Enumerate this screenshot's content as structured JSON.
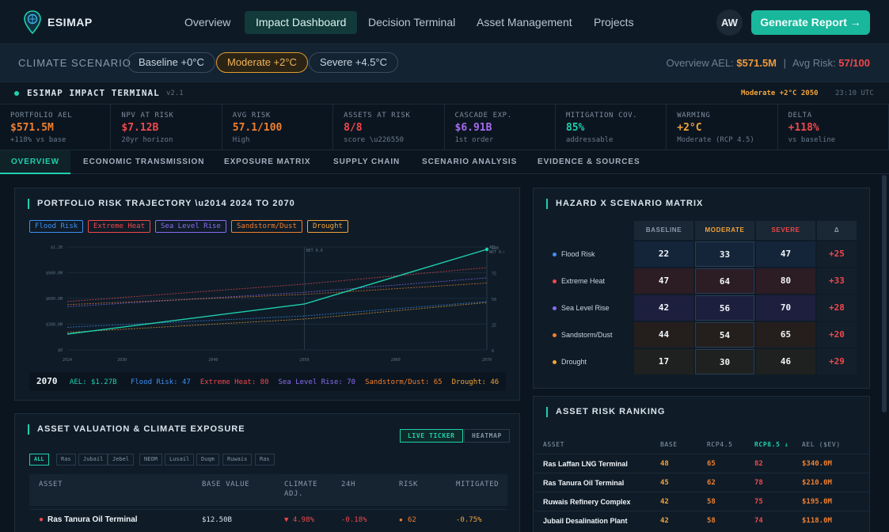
{
  "app": {
    "name": "ESIMAP"
  },
  "nav": {
    "items": [
      {
        "label": "Overview",
        "active": false
      },
      {
        "label": "Impact Dashboard",
        "active": true
      },
      {
        "label": "Decision Terminal",
        "active": false
      },
      {
        "label": "Asset Management",
        "active": false
      },
      {
        "label": "Projects",
        "active": false
      }
    ],
    "avatar": "AW",
    "generate_button": "Generate Report →"
  },
  "scenario_bar": {
    "label": "CLIMATE SCENARIO",
    "options": [
      {
        "label": "Baseline +0°C",
        "active": false
      },
      {
        "label": "Moderate +2°C",
        "active": true
      },
      {
        "label": "Severe +4.5°C",
        "active": false
      }
    ],
    "overview_ael_label": "Overview AEL:",
    "overview_ael": "$571.5M",
    "separator": "|",
    "avg_risk_label": "Avg Risk:",
    "avg_risk": "57/100"
  },
  "terminal": {
    "title": "ESIMAP IMPACT TERMINAL",
    "version": "v2.1",
    "scenario": "Moderate +2°C 2050",
    "time": "23:10 UTC"
  },
  "kpis": [
    {
      "label": "PORTFOLIO AEL",
      "value": "$571.5M",
      "sub": "+118% vs base",
      "color": "#f07f2e"
    },
    {
      "label": "NPV AT RISK",
      "value": "$7.12B",
      "sub": "20yr horizon",
      "color": "#f0484b"
    },
    {
      "label": "AVG RISK",
      "value": "57.1/100",
      "sub": "High",
      "color": "#f07f2e"
    },
    {
      "label": "ASSETS AT RISK",
      "value": "8/8",
      "sub": "score \\u226550",
      "color": "#f0484b"
    },
    {
      "label": "CASCADE EXP.",
      "value": "$6.91B",
      "sub": "1st order",
      "color": "#a56cf0"
    },
    {
      "label": "MITIGATION COV.",
      "value": "85%",
      "sub": "addressable",
      "color": "#1fd0ae"
    },
    {
      "label": "WARMING",
      "value": "+2°C",
      "sub": "Moderate (RCP 4.5)",
      "color": "#f2a33a"
    },
    {
      "label": "DELTA",
      "value": "+118%",
      "sub": "vs baseline",
      "color": "#f0484b"
    }
  ],
  "tabs": [
    {
      "label": "OVERVIEW",
      "active": true
    },
    {
      "label": "ECONOMIC TRANSMISSION",
      "active": false
    },
    {
      "label": "EXPOSURE MATRIX",
      "active": false
    },
    {
      "label": "SUPPLY CHAIN",
      "active": false
    },
    {
      "label": "SCENARIO ANALYSIS",
      "active": false
    },
    {
      "label": "EVIDENCE & SOURCES",
      "active": false
    }
  ],
  "trajectory": {
    "title": "PORTFOLIO RISK TRAJECTORY \\u2014 2024 TO 2070",
    "legend": [
      {
        "label": "Flood Risk",
        "color": "#3f8ff0"
      },
      {
        "label": "Extreme Heat",
        "color": "#f0484b"
      },
      {
        "label": "Sea Level Rise",
        "color": "#8a6cf0"
      },
      {
        "label": "Sandstorm/Dust",
        "color": "#f07f2e"
      },
      {
        "label": "Drought",
        "color": "#f2a33a"
      }
    ],
    "summary_year": "2070",
    "summary_ael_label": "AEL: $1.27B",
    "summary_items": [
      {
        "label": "Flood Risk: 47",
        "color": "#3f8ff0"
      },
      {
        "label": "Extreme Heat: 80",
        "color": "#f0484b"
      },
      {
        "label": "Sea Level Rise: 70",
        "color": "#8a6cf0"
      },
      {
        "label": "Sandstorm/Dust: 65",
        "color": "#f07f2e"
      },
      {
        "label": "Drought: 46",
        "color": "#f2a33a"
      }
    ]
  },
  "chart_data": {
    "type": "line",
    "title": "PORTFOLIO RISK TRAJECTORY \\u2014 2024 TO 2070",
    "x": [
      2024,
      2050,
      2070
    ],
    "x_ticks": [
      "2024",
      "2030",
      "2040",
      "2050",
      "2060",
      "2070"
    ],
    "y_left_ticks": [
      "$0",
      "$300.0M",
      "$600.0M",
      "$900.0M",
      "$1.2B"
    ],
    "y_right_ticks": [
      "0",
      "25",
      "50",
      "75",
      "100"
    ],
    "ael_series": {
      "name": "AEL",
      "values": [
        0.2,
        0.58,
        1.27
      ],
      "color": "#1fd0ae"
    },
    "series": [
      {
        "name": "Flood Risk",
        "values": [
          22,
          33,
          47
        ],
        "color": "#3f8ff0"
      },
      {
        "name": "Extreme Heat",
        "values": [
          47,
          64,
          80
        ],
        "color": "#f0484b"
      },
      {
        "name": "Sea Level Rise",
        "values": [
          42,
          56,
          70
        ],
        "color": "#8a6cf0"
      },
      {
        "name": "Sandstorm/Dust",
        "values": [
          44,
          54,
          65
        ],
        "color": "#f07f2e"
      },
      {
        "name": "Drought",
        "values": [
          17,
          30,
          46
        ],
        "color": "#f2a33a"
      }
    ],
    "ylim_left": [
      0,
      1.3
    ],
    "ylim_right": [
      0,
      100
    ],
    "annotations": [
      "NOW",
      "NET 0.0"
    ],
    "end_labels": [
      "AEL",
      "NET 0.0"
    ]
  },
  "matrix": {
    "title": "HAZARD X SCENARIO MATRIX",
    "columns": [
      {
        "label": "BASELINE",
        "color": "#8b9aab"
      },
      {
        "label": "MODERATE",
        "color": "#f2a33a"
      },
      {
        "label": "SEVERE",
        "color": "#f0484b"
      },
      {
        "label": "Δ",
        "color": "#8b9aab"
      }
    ],
    "rows": [
      {
        "label": "Flood Risk",
        "color": "#3f8ff0",
        "values": [
          "22",
          "33",
          "47"
        ],
        "delta": "+25",
        "tint": "#14253a"
      },
      {
        "label": "Extreme Heat",
        "color": "#f0484b",
        "values": [
          "47",
          "64",
          "80"
        ],
        "delta": "+33",
        "tint": "#2c1c24"
      },
      {
        "label": "Sea Level Rise",
        "color": "#8a6cf0",
        "values": [
          "42",
          "56",
          "70"
        ],
        "delta": "+28",
        "tint": "#1d1f3e"
      },
      {
        "label": "Sandstorm/Dust",
        "color": "#f07f2e",
        "values": [
          "44",
          "54",
          "65"
        ],
        "delta": "+20",
        "tint": "#241e1c"
      },
      {
        "label": "Drought",
        "color": "#f2a33a",
        "values": [
          "17",
          "30",
          "46"
        ],
        "delta": "+29",
        "tint": "#1e211f"
      }
    ]
  },
  "assets": {
    "title": "ASSET VALUATION & CLIMATE EXPOSURE",
    "toggles": [
      {
        "label": "LIVE TICKER",
        "active": true
      },
      {
        "label": "HEATMAP",
        "active": false
      }
    ],
    "filters": [
      {
        "label": "ALL",
        "active": true
      },
      {
        "label": "Ras",
        "active": false
      },
      {
        "label": "Jubail",
        "active": false
      },
      {
        "label": "Jebel",
        "active": false
      },
      {
        "label": "NEOM",
        "active": false
      },
      {
        "label": "Lusail",
        "active": false
      },
      {
        "label": "Duqm",
        "active": false
      },
      {
        "label": "Ruwais",
        "active": false
      },
      {
        "label": "Ras",
        "active": false
      }
    ],
    "columns": [
      "ASSET",
      "BASE VALUE",
      "CLIMATE ADJ.",
      "24H",
      "RISK",
      "MITIGATED"
    ],
    "rows": [
      {
        "name": "Ras Tanura Oil Terminal",
        "base": "$12.50B",
        "adj": "▼ 4.98%",
        "h24": "-0.18%",
        "risk": "62",
        "mitigated": "-0.75%"
      }
    ]
  },
  "ranking": {
    "title": "ASSET RISK RANKING",
    "columns": [
      {
        "label": "ASSET",
        "color": "#8b9aab"
      },
      {
        "label": "BASE",
        "color": "#8b9aab"
      },
      {
        "label": "RCP4.5",
        "color": "#8b9aab"
      },
      {
        "label": "RCP8.5 ↓",
        "color": "#1fd0ae"
      },
      {
        "label": "AEL ($EV)",
        "color": "#8b9aab"
      }
    ],
    "rows": [
      {
        "name": "Ras Laffan LNG Terminal",
        "base": "48",
        "rcp45": "65",
        "rcp85": "82",
        "ael": "$340.0M"
      },
      {
        "name": "Ras Tanura Oil Terminal",
        "base": "45",
        "rcp45": "62",
        "rcp85": "78",
        "ael": "$210.0M"
      },
      {
        "name": "Ruwais Refinery Complex",
        "base": "42",
        "rcp45": "58",
        "rcp85": "75",
        "ael": "$195.0M"
      },
      {
        "name": "Jubail Desalination Plant",
        "base": "42",
        "rcp45": "58",
        "rcp85": "74",
        "ael": "$118.0M"
      }
    ]
  }
}
